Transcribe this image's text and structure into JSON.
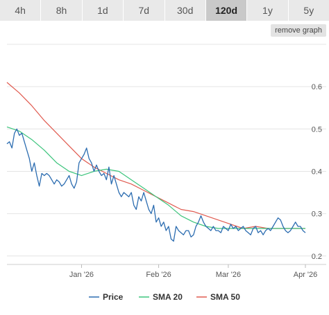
{
  "range_tabs": [
    {
      "label": "4h",
      "active": false
    },
    {
      "label": "8h",
      "active": false
    },
    {
      "label": "1d",
      "active": false
    },
    {
      "label": "7d",
      "active": false
    },
    {
      "label": "30d",
      "active": false
    },
    {
      "label": "120d",
      "active": true
    },
    {
      "label": "1y",
      "active": false
    },
    {
      "label": "5y",
      "active": false
    }
  ],
  "remove_graph_label": "remove graph",
  "chart_data": {
    "type": "line",
    "title": "",
    "xlabel": "",
    "ylabel": "",
    "x_ticks": [
      "Jan '26",
      "Feb '26",
      "Mar '26",
      "Apr '26"
    ],
    "y_ticks": [
      0.2,
      0.3,
      0.4,
      0.5,
      0.6
    ],
    "ylim": [
      0.18,
      0.7
    ],
    "xlim": [
      0,
      120
    ],
    "x_tick_positions": [
      30,
      61,
      89,
      120
    ],
    "grid": true,
    "legend_position": "bottom",
    "series": [
      {
        "name": "Price",
        "color": "#2b6cb0",
        "x": [
          0,
          1,
          2,
          3,
          4,
          5,
          6,
          7,
          8,
          9,
          10,
          11,
          12,
          13,
          14,
          15,
          16,
          17,
          18,
          19,
          20,
          21,
          22,
          23,
          24,
          25,
          26,
          27,
          28,
          29,
          30,
          31,
          32,
          33,
          34,
          35,
          36,
          37,
          38,
          39,
          40,
          41,
          42,
          43,
          44,
          45,
          46,
          47,
          48,
          49,
          50,
          51,
          52,
          53,
          54,
          55,
          56,
          57,
          58,
          59,
          60,
          61,
          62,
          63,
          64,
          65,
          66,
          67,
          68,
          69,
          70,
          71,
          72,
          73,
          74,
          75,
          76,
          77,
          78,
          79,
          80,
          81,
          82,
          83,
          84,
          85,
          86,
          87,
          88,
          89,
          90,
          91,
          92,
          93,
          94,
          95,
          96,
          97,
          98,
          99,
          100,
          101,
          102,
          103,
          104,
          105,
          106,
          107,
          108,
          109,
          110,
          111,
          112,
          113,
          114,
          115,
          116,
          117,
          118,
          119,
          120
        ],
        "values": [
          0.465,
          0.47,
          0.455,
          0.49,
          0.5,
          0.485,
          0.49,
          0.47,
          0.45,
          0.43,
          0.4,
          0.42,
          0.39,
          0.365,
          0.395,
          0.39,
          0.395,
          0.39,
          0.38,
          0.37,
          0.38,
          0.375,
          0.365,
          0.37,
          0.38,
          0.39,
          0.37,
          0.36,
          0.375,
          0.42,
          0.43,
          0.44,
          0.455,
          0.43,
          0.42,
          0.4,
          0.415,
          0.4,
          0.39,
          0.395,
          0.38,
          0.41,
          0.37,
          0.39,
          0.37,
          0.35,
          0.34,
          0.35,
          0.345,
          0.34,
          0.35,
          0.32,
          0.31,
          0.34,
          0.33,
          0.35,
          0.33,
          0.31,
          0.3,
          0.32,
          0.28,
          0.29,
          0.27,
          0.28,
          0.26,
          0.27,
          0.24,
          0.235,
          0.27,
          0.26,
          0.255,
          0.25,
          0.26,
          0.26,
          0.245,
          0.25,
          0.27,
          0.28,
          0.295,
          0.28,
          0.27,
          0.265,
          0.26,
          0.27,
          0.26,
          0.26,
          0.255,
          0.27,
          0.265,
          0.26,
          0.275,
          0.265,
          0.27,
          0.26,
          0.265,
          0.27,
          0.26,
          0.255,
          0.25,
          0.265,
          0.27,
          0.255,
          0.26,
          0.25,
          0.26,
          0.265,
          0.26,
          0.27,
          0.28,
          0.29,
          0.285,
          0.27,
          0.26,
          0.255,
          0.26,
          0.27,
          0.28,
          0.27,
          0.27,
          0.26,
          0.255
        ]
      },
      {
        "name": "SMA 20",
        "color": "#3cc47c",
        "x": [
          0,
          5,
          10,
          15,
          20,
          25,
          30,
          35,
          40,
          45,
          50,
          55,
          60,
          65,
          70,
          75,
          80,
          85,
          90,
          95,
          100,
          105,
          110,
          115,
          120
        ],
        "values": [
          0.505,
          0.495,
          0.475,
          0.45,
          0.42,
          0.4,
          0.39,
          0.4,
          0.405,
          0.4,
          0.38,
          0.36,
          0.34,
          0.32,
          0.295,
          0.28,
          0.27,
          0.265,
          0.265,
          0.265,
          0.265,
          0.265,
          0.265,
          0.265,
          0.265
        ]
      },
      {
        "name": "SMA 50",
        "color": "#e05a4f",
        "x": [
          0,
          5,
          10,
          15,
          20,
          25,
          30,
          35,
          40,
          45,
          50,
          55,
          60,
          65,
          70,
          75,
          80,
          85,
          90,
          95,
          100,
          105,
          110,
          115,
          120
        ],
        "values": [
          0.61,
          0.585,
          0.555,
          0.52,
          0.49,
          0.46,
          0.43,
          0.41,
          0.395,
          0.38,
          0.37,
          0.355,
          0.34,
          0.325,
          0.31,
          0.305,
          0.295,
          0.285,
          0.275,
          0.265,
          0.27,
          0.265,
          0.265,
          0.265,
          0.265
        ]
      }
    ]
  }
}
